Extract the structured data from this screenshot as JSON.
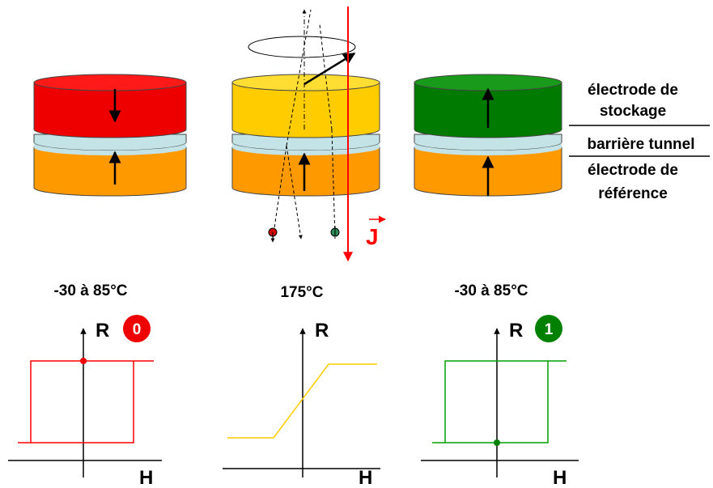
{
  "colors": {
    "red_layer": "#ff0000",
    "yellow_layer": "#ffcc00",
    "green_layer": "#008000",
    "orange_layer": "#ff9900",
    "barrier": "#c4e3e6",
    "current": "#ff0000",
    "curve_red": "#ff0000",
    "curve_yellow": "#ffcc00",
    "curve_green": "#00a000"
  },
  "layers": {
    "storage": "électrode de stockage",
    "storage_line1": "électrode de",
    "storage_line2": "stockage",
    "barrier": "barrière tunnel",
    "reference": "électrode de référence",
    "reference_line1": "électrode de",
    "reference_line2": "référence"
  },
  "current_label": "J",
  "panels": [
    {
      "temperature": "-30 à 85°C",
      "y_label": "R",
      "x_label": "H",
      "state": "0"
    },
    {
      "temperature": "175°C",
      "y_label": "R",
      "x_label": "H"
    },
    {
      "temperature": "-30 à 85°C",
      "y_label": "R",
      "x_label": "H",
      "state": "1"
    }
  ],
  "stacks": [
    {
      "storage_color": "red",
      "storage_magnetization": "down",
      "reference_magnetization": "up"
    },
    {
      "storage_color": "yellow",
      "storage_magnetization": "precessing",
      "reference_magnetization": "up"
    },
    {
      "storage_color": "green",
      "storage_magnetization": "up",
      "reference_magnetization": "up"
    }
  ]
}
